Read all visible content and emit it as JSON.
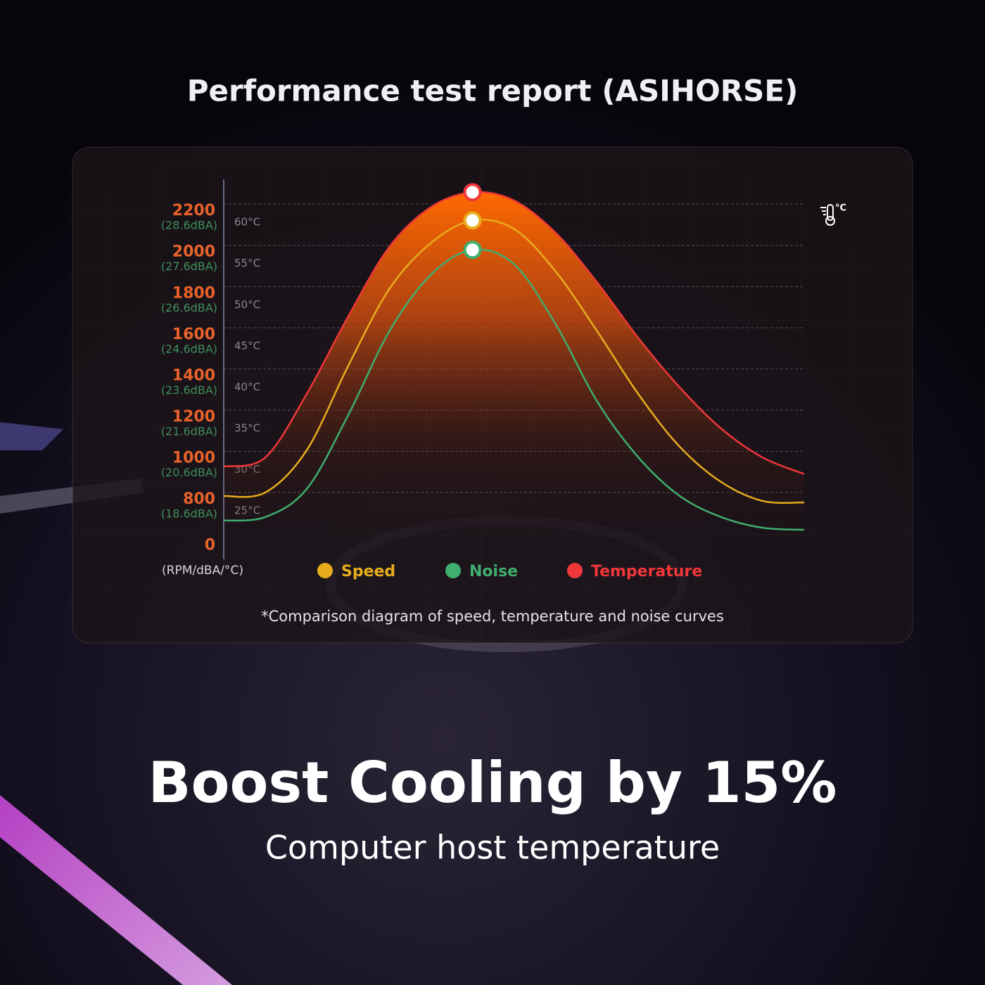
{
  "chart_data": {
    "type": "line",
    "title": "Performance test report (ASIHORSE)",
    "y_label": "(RPM/dBA/°C)",
    "icon_label": "°C",
    "note": "*Comparison diagram of speed, temperature and noise curves",
    "categories": [
      null,
      null,
      null,
      null,
      null,
      null,
      null,
      null,
      null,
      null,
      null,
      null,
      null,
      null,
      null
    ],
    "ylim": [
      600,
      2400
    ],
    "axis_break": true,
    "yticks": [
      0,
      800,
      1000,
      1200,
      1400,
      1600,
      1800,
      2000,
      2200
    ],
    "noise_tick_labels": [
      null,
      "(18.6dBA)",
      "(20.6dBA)",
      "(21.6dBA)",
      "(23.6dBA)",
      "(24.6dBA)",
      "(26.6dBA)",
      "(27.6dBA)",
      "(28.6dBA)"
    ],
    "y2lim": [
      20,
      65
    ],
    "y2ticks": [
      {
        "value": 25,
        "label": "25°C"
      },
      {
        "value": 30,
        "label": "30°C"
      },
      {
        "value": 35,
        "label": "35°C"
      },
      {
        "value": 40,
        "label": "40°C"
      },
      {
        "value": 45,
        "label": "45°C"
      },
      {
        "value": 50,
        "label": "50°C"
      },
      {
        "value": 55,
        "label": "55°C"
      },
      {
        "value": 60,
        "label": "60°C"
      }
    ],
    "grid": true,
    "series": [
      {
        "name": "Speed",
        "color": "#e8ad1c",
        "values": [
          841,
          858,
          1063,
          1472,
          1848,
          2070,
          2179,
          2138,
          1933,
          1643,
          1336,
          1080,
          909,
          817,
          810
        ]
      },
      {
        "name": "Noise",
        "color": "#3fae6e",
        "values": [
          722,
          739,
          875,
          1233,
          1643,
          1916,
          2036,
          1967,
          1677,
          1302,
          1029,
          841,
          739,
          687,
          677
        ]
      },
      {
        "name": "Temperature",
        "color": "#f0373a",
        "axis": "y2",
        "values": [
          29.6,
          30.7,
          38.4,
          47.8,
          56.3,
          61.1,
          62.9,
          61.9,
          58.0,
          52.0,
          45.2,
          39.2,
          34.2,
          30.7,
          28.7
        ]
      }
    ]
  },
  "headline": "Boost Cooling by 15%",
  "subheadline": "Computer host temperature"
}
